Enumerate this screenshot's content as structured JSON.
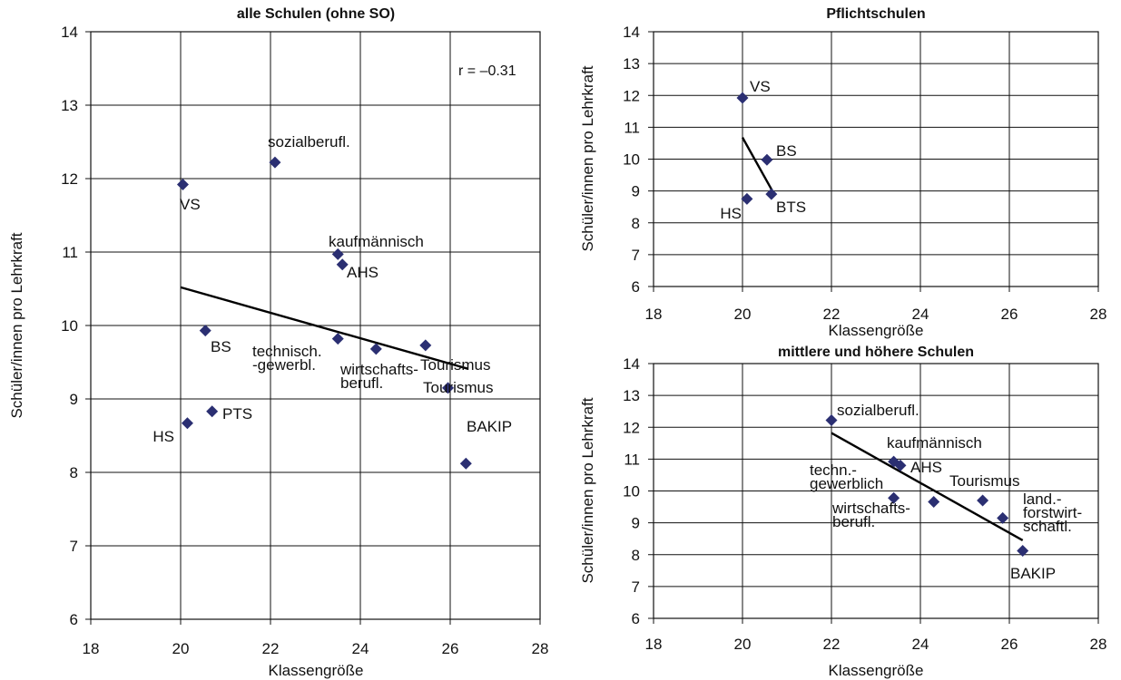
{
  "colors": {
    "marker": "#2b2f72",
    "grid": "#111111",
    "trend": "#000000",
    "frame": "#111111"
  },
  "chart_data": [
    {
      "type": "scatter",
      "title": "alle Schulen (ohne SO)",
      "xlabel": "Klassengröße",
      "ylabel": "Schüler/innen pro Lehrkraft",
      "xlim": [
        18,
        28
      ],
      "ylim": [
        6,
        14
      ],
      "xticks": [
        18,
        20,
        22,
        24,
        26,
        28
      ],
      "yticks": [
        6,
        7,
        8,
        9,
        10,
        11,
        12,
        13,
        14
      ],
      "grid": true,
      "annotation": "r = –0.31",
      "points": [
        {
          "label": "sozialberufl.",
          "x": 22.1,
          "y": 12.22
        },
        {
          "label": "VS",
          "x": 20.05,
          "y": 11.92
        },
        {
          "label": "kaufmännisch",
          "x": 23.5,
          "y": 10.97
        },
        {
          "label": "AHS",
          "x": 23.6,
          "y": 10.83
        },
        {
          "label": "BS",
          "x": 20.55,
          "y": 9.93
        },
        {
          "label": "technisch.\n-gewerbl.",
          "x": 23.5,
          "y": 9.82
        },
        {
          "label": "wirtschafts-\nberufl.",
          "x": 24.35,
          "y": 9.68
        },
        {
          "label": "Tourismus",
          "x": 25.45,
          "y": 9.73
        },
        {
          "label": "Tourismus",
          "x": 25.95,
          "y": 9.15
        },
        {
          "label": "PTS",
          "x": 20.7,
          "y": 8.83
        },
        {
          "label": "HS",
          "x": 20.15,
          "y": 8.67
        },
        {
          "label": "BAKIP",
          "x": 26.35,
          "y": 8.12
        }
      ],
      "trendline": [
        [
          20.0,
          10.52
        ],
        [
          26.4,
          9.41
        ]
      ]
    },
    {
      "type": "scatter",
      "title": "Pflichtschulen",
      "xlabel": "Klassengröße",
      "ylabel": "Schüler/innen pro Lehrkraft",
      "xlim": [
        18,
        28
      ],
      "ylim": [
        6,
        14
      ],
      "xticks": [
        18,
        20,
        22,
        24,
        26,
        28
      ],
      "yticks": [
        6,
        7,
        8,
        9,
        10,
        11,
        12,
        13,
        14
      ],
      "grid": true,
      "points": [
        {
          "label": "VS",
          "x": 20.0,
          "y": 11.92
        },
        {
          "label": "BS",
          "x": 20.55,
          "y": 9.98
        },
        {
          "label": "BTS",
          "x": 20.65,
          "y": 8.9
        },
        {
          "label": "HS",
          "x": 20.1,
          "y": 8.75
        }
      ],
      "trendline": [
        [
          20.0,
          10.68
        ],
        [
          20.7,
          8.93
        ]
      ]
    },
    {
      "type": "scatter",
      "title": "mittlere und höhere Schulen",
      "xlabel": "Klassengröße",
      "ylabel": "Schüler/innen pro Lehrkraft",
      "xlim": [
        18,
        28
      ],
      "ylim": [
        6,
        14
      ],
      "xticks": [
        18,
        20,
        22,
        24,
        26,
        28
      ],
      "yticks": [
        6,
        7,
        8,
        9,
        10,
        11,
        12,
        13,
        14
      ],
      "grid": true,
      "points": [
        {
          "label": "sozialberufl.",
          "x": 22.0,
          "y": 12.22
        },
        {
          "label": "kaufmännisch",
          "x": 23.4,
          "y": 10.92
        },
        {
          "label": "AHS",
          "x": 23.55,
          "y": 10.8
        },
        {
          "label": "techn.-\ngewerblich",
          "x": 23.4,
          "y": 9.78
        },
        {
          "label": "wirtschafts-\nberufl.",
          "x": 24.3,
          "y": 9.66
        },
        {
          "label": "Tourismus",
          "x": 25.4,
          "y": 9.7
        },
        {
          "label": "land.-\nforstwirt-\nschaftl.",
          "x": 25.85,
          "y": 9.15
        },
        {
          "label": "BAKIP",
          "x": 26.3,
          "y": 8.12
        }
      ],
      "trendline": [
        [
          22.0,
          11.82
        ],
        [
          26.3,
          8.45
        ]
      ]
    }
  ]
}
